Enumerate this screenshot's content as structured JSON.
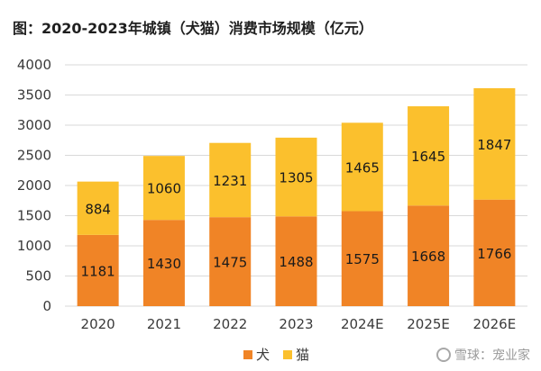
{
  "chart_data": {
    "type": "bar",
    "stacked": true,
    "title": "图：2020-2023年城镇（犬猫）消费市场规模（亿元）",
    "categories": [
      "2020",
      "2021",
      "2022",
      "2023",
      "2024E",
      "2025E",
      "2026E"
    ],
    "series": [
      {
        "name": "犬",
        "color": "#F08426",
        "values": [
          1181,
          1430,
          1475,
          1488,
          1575,
          1668,
          1766
        ]
      },
      {
        "name": "猫",
        "color": "#FBC02D",
        "values": [
          884,
          1060,
          1231,
          1305,
          1465,
          1645,
          1847
        ]
      }
    ],
    "ylim": [
      0,
      4000
    ],
    "yticks": [
      0,
      500,
      1000,
      1500,
      2000,
      2500,
      3000,
      3500,
      4000
    ],
    "grid": true,
    "legend": "bottom"
  },
  "watermark": "雪球：宠业家"
}
